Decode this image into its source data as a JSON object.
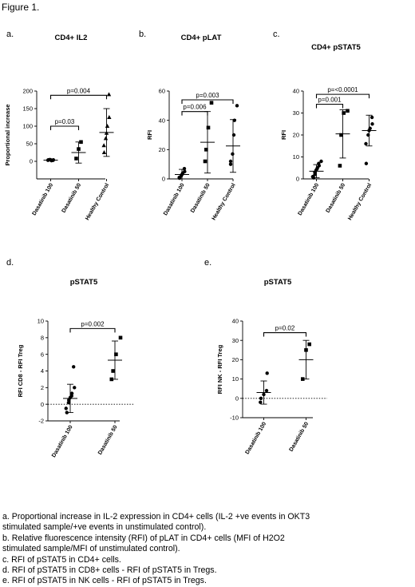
{
  "figure_title": "Figure 1.",
  "chart_data": [
    {
      "panel": "a.",
      "type": "scatter",
      "title": "CD4+ IL2",
      "ylabel": "Proportional increase",
      "categories": [
        "Dasatinib 100",
        "Dasatinib 50",
        "Healthy Control"
      ],
      "ylim": [
        -50,
        200
      ],
      "yticks": [
        0,
        50,
        100,
        150,
        200
      ],
      "markers": [
        "circle",
        "square",
        "triangle"
      ],
      "points": [
        [
          4,
          3,
          5,
          4,
          2,
          4,
          3
        ],
        [
          8,
          35,
          55
        ],
        [
          25,
          45,
          65,
          80,
          100,
          125,
          190
        ]
      ],
      "mean": [
        3.5,
        25,
        82
      ],
      "sd": [
        1,
        30,
        68
      ],
      "comparisons": [
        {
          "from": 0,
          "to": 1,
          "label": "p=0.03",
          "y": 100
        },
        {
          "from": 0,
          "to": 2,
          "label": "p=0.004",
          "y": 188
        }
      ]
    },
    {
      "panel": "b.",
      "type": "scatter",
      "title": "CD4+ pLAT",
      "ylabel": "RFI",
      "categories": [
        "Dasatinib 100",
        "Dasatinib 50",
        "Healthy Control"
      ],
      "ylim": [
        0,
        60
      ],
      "yticks": [
        0,
        20,
        40,
        60
      ],
      "markers": [
        "circle",
        "square",
        "circle"
      ],
      "points": [
        [
          0.5,
          1,
          2,
          3,
          4,
          5,
          7
        ],
        [
          12,
          20,
          35,
          52
        ],
        [
          10,
          12,
          17,
          30,
          40,
          50
        ]
      ],
      "mean": [
        3,
        25,
        22.5
      ],
      "sd": [
        3.5,
        21,
        18
      ],
      "comparisons": [
        {
          "from": 0,
          "to": 1,
          "label": "p=0.006",
          "y": 46
        },
        {
          "from": 0,
          "to": 2,
          "label": "p=0.003",
          "y": 54
        }
      ]
    },
    {
      "panel": "c.",
      "type": "scatter",
      "title": "CD4+ pSTAT5",
      "ylabel": "RFI",
      "categories": [
        "Dasatinib 100",
        "Dasatinib 50",
        "Healthy Control"
      ],
      "ylim": [
        0,
        40
      ],
      "yticks": [
        0,
        10,
        20,
        30,
        40
      ],
      "markers": [
        "circle",
        "square",
        "circle"
      ],
      "points": [
        [
          0.5,
          1,
          2,
          3,
          4,
          4.5,
          5,
          6,
          7,
          8
        ],
        [
          6,
          20,
          30,
          31
        ],
        [
          7,
          16,
          20,
          22,
          23,
          25,
          28
        ]
      ],
      "mean": [
        3.5,
        20.5,
        22
      ],
      "sd": [
        3,
        11,
        7
      ],
      "comparisons": [
        {
          "from": 0,
          "to": 1,
          "label": "p=0.001",
          "y": 34
        },
        {
          "from": 0,
          "to": 2,
          "label": "p=<0.0001",
          "y": 38.5
        }
      ]
    },
    {
      "panel": "d.",
      "type": "scatter",
      "title": "pSTAT5",
      "ylabel": "RFI CD8 - RFI Treg",
      "categories": [
        "Dasatinib 100",
        "Dasatinib 50"
      ],
      "ylim": [
        -2,
        10
      ],
      "yticks": [
        -2,
        0,
        2,
        4,
        6,
        8,
        10
      ],
      "reference_line": 0,
      "markers": [
        "circle",
        "square"
      ],
      "points": [
        [
          -1,
          -0.5,
          0.2,
          0.5,
          0.8,
          1,
          1.3,
          2,
          4.5
        ],
        [
          3,
          4,
          6,
          8
        ]
      ],
      "mean": [
        0.7,
        5.3
      ],
      "sd": [
        1.7,
        2.3
      ],
      "comparisons": [
        {
          "from": 0,
          "to": 1,
          "label": "p=0.002",
          "y": 9.1
        }
      ]
    },
    {
      "panel": "e.",
      "type": "scatter",
      "title": "pSTAT5",
      "ylabel": "RFI NK - RFI Treg",
      "categories": [
        "Dasatinib 100",
        "Dasatinib 50"
      ],
      "ylim": [
        -10,
        40
      ],
      "yticks": [
        -10,
        0,
        10,
        20,
        30,
        40
      ],
      "reference_line": 0,
      "markers": [
        "circle",
        "square"
      ],
      "points": [
        [
          -2,
          0,
          2,
          4,
          13
        ],
        [
          10,
          25,
          28
        ]
      ],
      "mean": [
        3,
        20
      ],
      "sd": [
        6,
        10
      ],
      "comparisons": [
        {
          "from": 0,
          "to": 1,
          "label": "p=0.02",
          "y": 34
        }
      ]
    }
  ],
  "legend": [
    "a. Proportional increase in IL-2 expression in CD4+ cells (IL-2 +ve events in OKT3",
    "stimulated sample/+ve events in unstimulated control).",
    "b. Relative fluorescence intensity (RFI) of pLAT in CD4+ cells (MFI of H2O2",
    "stimulated sample/MFI of unstimulated control).",
    "c. RFI of pSTAT5 in CD4+ cells.",
    "d. RFI of pSTAT5 in CD8+ cells - RFI of pSTAT5 in Tregs.",
    "e. RFI of pSTAT5 in NK cells - RFI of pSTAT5 in Tregs."
  ]
}
